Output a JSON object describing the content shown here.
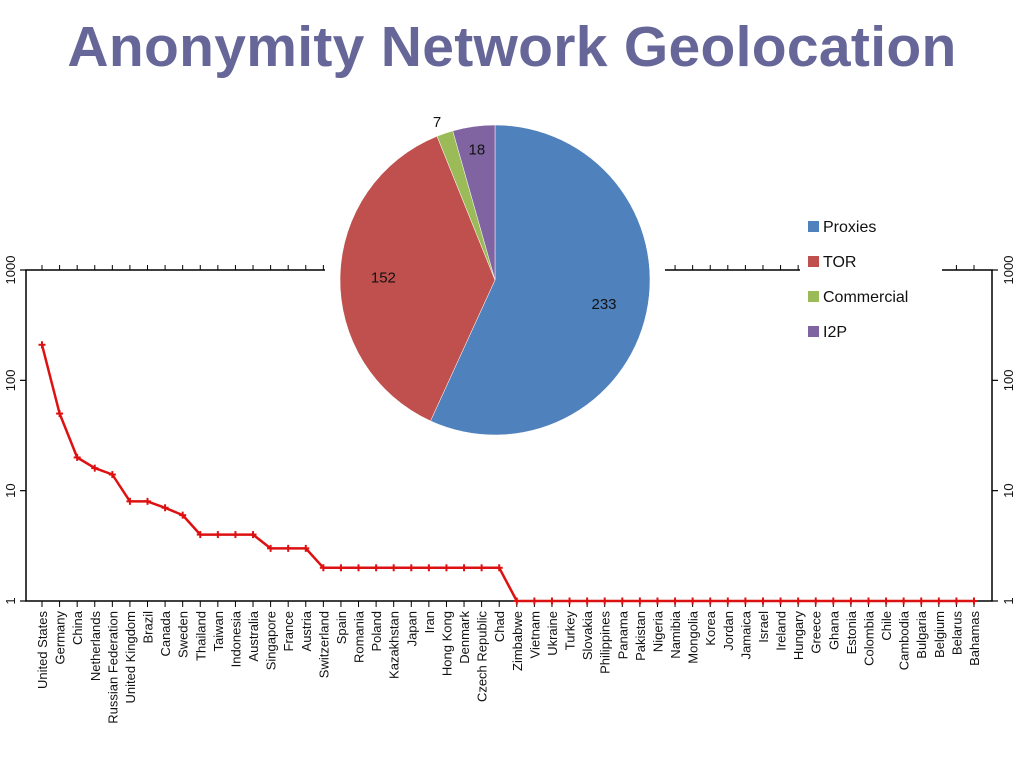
{
  "title": "Anonymity Network Geolocation",
  "chart_data": [
    {
      "type": "line",
      "scale": "log",
      "ylim": [
        1,
        1000
      ],
      "y_ticks": [
        "1",
        "10",
        "100",
        "1000"
      ],
      "y_tick_values": [
        1,
        10,
        100,
        1000
      ],
      "grid": false,
      "color": "#dd1111",
      "categories": [
        "United States",
        "Germany",
        "China",
        "Netherlands",
        "Russian Federation",
        "United Kingdom",
        "Brazil",
        "Canada",
        "Sweden",
        "Thailand",
        "Taiwan",
        "Indonesia",
        "Australia",
        "Singapore",
        "France",
        "Austria",
        "Switzerland",
        "Spain",
        "Romania",
        "Poland",
        "Kazakhstan",
        "Japan",
        "Iran",
        "Hong Kong",
        "Denmark",
        "Czech Republic",
        "Chad",
        "Zimbabwe",
        "Vietnam",
        "Ukraine",
        "Turkey",
        "Slovakia",
        "Philippines",
        "Panama",
        "Pakistan",
        "Nigeria",
        "Namibia",
        "Mongolia",
        "Korea",
        "Jordan",
        "Jamaica",
        "Israel",
        "Ireland",
        "Hungary",
        "Greece",
        "Ghana",
        "Estonia",
        "Colombia",
        "Chile",
        "Cambodia",
        "Bulgaria",
        "Belgium",
        "Belarus",
        "Bahamas"
      ],
      "values": [
        210,
        50,
        20,
        16,
        14,
        8,
        8,
        7,
        6,
        4,
        4,
        4,
        4,
        3,
        3,
        3,
        2,
        2,
        2,
        2,
        2,
        2,
        2,
        2,
        2,
        2,
        2,
        1,
        1,
        1,
        1,
        1,
        1,
        1,
        1,
        1,
        1,
        1,
        1,
        1,
        1,
        1,
        1,
        1,
        1,
        1,
        1,
        1,
        1,
        1,
        1,
        1,
        1,
        1
      ]
    },
    {
      "type": "pie",
      "slices": [
        {
          "name": "Proxies",
          "value": 233,
          "label": "233",
          "color": "#4f81bd"
        },
        {
          "name": "TOR",
          "value": 152,
          "label": "152",
          "color": "#c0504d"
        },
        {
          "name": "Commercial",
          "value": 7,
          "label": "7",
          "color": "#9bbb59"
        },
        {
          "name": "I2P",
          "value": 18,
          "label": "18",
          "color": "#8064a2"
        }
      ],
      "legend_position": "right"
    }
  ]
}
